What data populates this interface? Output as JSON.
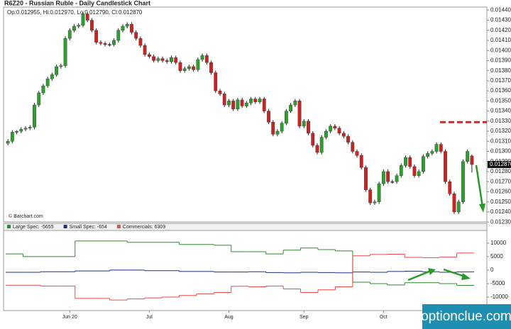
{
  "header": {
    "title": "R6Z20 - Russian Ruble - Daily Candlestick Chart",
    "credit": "© Barchart.com",
    "watermark": "optionclue.com"
  },
  "chart_data": [
    {
      "type": "candlestick",
      "info": "Op:0.012955, Hi:0.012970, Lo:0.012790, Cl:0.012870",
      "categories": [
        null,
        null,
        null,
        null,
        null,
        null,
        null,
        null,
        null,
        null,
        null,
        null,
        null,
        null,
        "Jun 20",
        null,
        null,
        null,
        null,
        null,
        null,
        null,
        null,
        null,
        null,
        null,
        null,
        null,
        null,
        null,
        null,
        null,
        "Jul",
        null,
        null,
        null,
        null,
        null,
        null,
        null,
        null,
        null,
        null,
        null,
        null,
        null,
        null,
        null,
        null,
        null,
        "Aug",
        null,
        null,
        null,
        null,
        null,
        null,
        null,
        null,
        null,
        null,
        null,
        null,
        null,
        null,
        null,
        null,
        "Sep",
        null,
        null,
        null,
        null,
        null,
        null,
        null,
        null,
        null,
        null,
        null,
        null,
        null,
        null,
        null,
        null,
        null,
        "Oct",
        null,
        null,
        null,
        null,
        null,
        null,
        null,
        null,
        null,
        null,
        null,
        null,
        null,
        null,
        null,
        null,
        null,
        null,
        null,
        null
      ],
      "open": [
        0.01308,
        0.0131,
        0.01319,
        0.0132,
        0.01322,
        0.01323,
        0.01324,
        0.01346,
        0.01358,
        0.01365,
        0.01372,
        0.01376,
        0.01384,
        0.01385,
        0.01412,
        0.0142,
        0.01424,
        0.01425,
        0.01436,
        0.0143,
        0.0142,
        0.01408,
        0.01407,
        0.01406,
        0.01406,
        0.0141,
        0.0142,
        0.01424,
        0.01426,
        0.01418,
        0.01412,
        0.01405,
        0.01396,
        0.01394,
        0.0139,
        0.01392,
        0.0139,
        0.01389,
        0.01393,
        0.01388,
        0.0138,
        0.01382,
        0.01384,
        0.01381,
        0.01391,
        0.01395,
        0.01388,
        0.01378,
        0.0136,
        0.01357,
        0.01346,
        0.0135,
        0.01342,
        0.01351,
        0.01345,
        0.01348,
        0.01352,
        0.01349,
        0.01352,
        0.0134,
        0.01329,
        0.01317,
        0.0132,
        0.01328,
        0.0134,
        0.01346,
        0.0135,
        0.01325,
        0.0133,
        0.01318,
        0.01306,
        0.01299,
        0.01314,
        0.0132,
        0.01325,
        0.01323,
        0.01318,
        0.01315,
        0.01309,
        0.013,
        0.01296,
        0.01284,
        0.01262,
        0.01249,
        0.0125,
        0.01268,
        0.0128,
        0.0127,
        0.0127,
        0.01276,
        0.01286,
        0.01294,
        0.01285,
        0.01276,
        0.0128,
        0.01295,
        0.01298,
        0.013,
        0.01307,
        0.013,
        0.0127,
        0.01258,
        0.0124,
        0.0125,
        0.0129,
        0.012955
      ],
      "high": [
        0.01312,
        0.01321,
        0.01321,
        0.01324,
        0.01325,
        0.01326,
        0.01348,
        0.0136,
        0.01367,
        0.01374,
        0.01378,
        0.01386,
        0.01387,
        0.01414,
        0.01422,
        0.01426,
        0.01427,
        0.01438,
        0.01438,
        0.01432,
        0.01422,
        0.0141,
        0.01409,
        0.01408,
        0.01412,
        0.01422,
        0.01426,
        0.01428,
        0.01428,
        0.0142,
        0.01414,
        0.01407,
        0.01398,
        0.01396,
        0.01394,
        0.01394,
        0.01392,
        0.01395,
        0.01395,
        0.0139,
        0.01384,
        0.01386,
        0.01386,
        0.01393,
        0.01397,
        0.01397,
        0.0139,
        0.0138,
        0.01362,
        0.01359,
        0.01352,
        0.01352,
        0.01353,
        0.01353,
        0.0135,
        0.01354,
        0.01354,
        0.01354,
        0.01354,
        0.01342,
        0.01331,
        0.01322,
        0.0133,
        0.01342,
        0.01348,
        0.01352,
        0.01352,
        0.01332,
        0.01332,
        0.0132,
        0.01308,
        0.01316,
        0.01322,
        0.01327,
        0.01327,
        0.01325,
        0.0132,
        0.01317,
        0.01311,
        0.01302,
        0.01298,
        0.01286,
        0.01264,
        0.01252,
        0.0127,
        0.01282,
        0.01282,
        0.01272,
        0.01278,
        0.01288,
        0.01296,
        0.01296,
        0.01287,
        0.01282,
        0.01297,
        0.013,
        0.01302,
        0.01309,
        0.01309,
        0.01302,
        0.01272,
        0.0126,
        0.01252,
        0.01292,
        0.01302,
        0.01297
      ],
      "low": [
        0.01306,
        0.01308,
        0.01317,
        0.01318,
        0.0132,
        0.01321,
        0.01322,
        0.01344,
        0.01356,
        0.01363,
        0.0137,
        0.01374,
        0.01382,
        0.01383,
        0.0141,
        0.01418,
        0.01422,
        0.01423,
        0.01428,
        0.01418,
        0.01406,
        0.01405,
        0.01404,
        0.01404,
        0.01404,
        0.01408,
        0.01418,
        0.01422,
        0.01416,
        0.0141,
        0.01403,
        0.01394,
        0.01392,
        0.01388,
        0.01388,
        0.01388,
        0.01387,
        0.01387,
        0.01386,
        0.01378,
        0.01378,
        0.0138,
        0.01379,
        0.01379,
        0.01389,
        0.01386,
        0.01376,
        0.01358,
        0.01355,
        0.01344,
        0.01344,
        0.0134,
        0.0134,
        0.01343,
        0.01343,
        0.01346,
        0.01347,
        0.01347,
        0.01338,
        0.01327,
        0.01315,
        0.01315,
        0.01318,
        0.01326,
        0.01338,
        0.01344,
        0.01323,
        0.01323,
        0.01316,
        0.01304,
        0.01297,
        0.01297,
        0.01312,
        0.01318,
        0.01321,
        0.01316,
        0.01313,
        0.01307,
        0.01298,
        0.01294,
        0.01282,
        0.0126,
        0.01247,
        0.01247,
        0.01248,
        0.01266,
        0.01268,
        0.01268,
        0.01268,
        0.01274,
        0.01284,
        0.01283,
        0.01274,
        0.01274,
        0.01278,
        0.01293,
        0.01296,
        0.01298,
        0.01298,
        0.01268,
        0.01256,
        0.01238,
        0.01238,
        0.01248,
        0.01288,
        0.01279
      ],
      "close": [
        0.0131,
        0.01319,
        0.0132,
        0.01322,
        0.01323,
        0.01324,
        0.01346,
        0.01358,
        0.01365,
        0.01372,
        0.01376,
        0.01384,
        0.01385,
        0.01412,
        0.0142,
        0.01424,
        0.01425,
        0.01436,
        0.0143,
        0.0142,
        0.01408,
        0.01407,
        0.01406,
        0.01406,
        0.0141,
        0.0142,
        0.01424,
        0.01426,
        0.01418,
        0.01412,
        0.01405,
        0.01396,
        0.01394,
        0.0139,
        0.01392,
        0.0139,
        0.01389,
        0.01393,
        0.01388,
        0.0138,
        0.01382,
        0.01384,
        0.01381,
        0.01391,
        0.01395,
        0.01388,
        0.01378,
        0.0136,
        0.01357,
        0.01346,
        0.0135,
        0.01342,
        0.01351,
        0.01345,
        0.01348,
        0.01352,
        0.01349,
        0.01352,
        0.0134,
        0.01329,
        0.01317,
        0.0132,
        0.01328,
        0.0134,
        0.01346,
        0.0135,
        0.01325,
        0.0133,
        0.01318,
        0.01306,
        0.01299,
        0.01314,
        0.0132,
        0.01325,
        0.01323,
        0.01318,
        0.01315,
        0.01309,
        0.013,
        0.01296,
        0.01284,
        0.01262,
        0.01249,
        0.0125,
        0.01268,
        0.0128,
        0.0127,
        0.0127,
        0.01276,
        0.01286,
        0.01294,
        0.01285,
        0.01276,
        0.0128,
        0.01295,
        0.01298,
        0.013,
        0.01307,
        0.013,
        0.0127,
        0.01258,
        0.0124,
        0.0125,
        0.0129,
        0.013,
        0.01287
      ],
      "up_color": "#2ca02c",
      "down_color": "#cc2222",
      "ylim": [
        0.01228,
        0.01443
      ],
      "yticks": [
        {
          "value": 0.0123,
          "label": "0.012300"
        },
        {
          "value": 0.0124,
          "label": "0.012400"
        },
        {
          "value": 0.0125,
          "label": "0.012500"
        },
        {
          "value": 0.0126,
          "label": "0.012600"
        },
        {
          "value": 0.0127,
          "label": "0.012700"
        },
        {
          "value": 0.0128,
          "label": "0.012800"
        },
        {
          "value": 0.0129,
          "label": "0.012900"
        },
        {
          "value": 0.013,
          "label": "0.013000"
        },
        {
          "value": 0.0131,
          "label": "0.013100"
        },
        {
          "value": 0.0132,
          "label": "0.013200"
        },
        {
          "value": 0.0133,
          "label": "0.013300"
        },
        {
          "value": 0.0134,
          "label": "0.013400"
        },
        {
          "value": 0.0135,
          "label": "0.013500"
        },
        {
          "value": 0.0136,
          "label": "0.013600"
        },
        {
          "value": 0.0137,
          "label": "0.013700"
        },
        {
          "value": 0.0138,
          "label": "0.013800"
        },
        {
          "value": 0.0139,
          "label": "0.013900"
        },
        {
          "value": 0.014,
          "label": "0.014000"
        },
        {
          "value": 0.0141,
          "label": "0.014100"
        },
        {
          "value": 0.0142,
          "label": "0.014200"
        },
        {
          "value": 0.0143,
          "label": "0.014300"
        },
        {
          "value": 0.0144,
          "label": "0.014400"
        }
      ],
      "last_price": {
        "value": 0.01287,
        "label": "0.012870"
      },
      "level_line": {
        "value": 0.01329,
        "color": "#e02020"
      }
    },
    {
      "type": "step",
      "ylim": [
        -15000,
        14700
      ],
      "yticks": [
        -10000,
        -5000,
        0,
        5000,
        10000
      ],
      "series": [
        {
          "name": "Large Spec: -5655",
          "color": "#2e8b2e",
          "values": [
            6000,
            5000,
            5000,
            5000,
            10800,
            10800,
            10800,
            10300,
            10300,
            10300,
            9500,
            9500,
            9200,
            6800,
            6800,
            6000,
            7400,
            8200,
            7600,
            7100,
            -4500,
            -5000,
            -5500,
            -4700,
            -4700,
            -5000,
            -5655
          ]
        },
        {
          "name": "Small Spec: -654",
          "color": "#1f2f8f",
          "values": [
            -800,
            -800,
            -600,
            -600,
            -300,
            -300,
            0,
            0,
            -200,
            -200,
            -500,
            -500,
            -700,
            -700,
            -600,
            -900,
            -1000,
            -800,
            -900,
            -1000,
            -700,
            -800,
            -500,
            -400,
            -600,
            -800,
            -654
          ]
        },
        {
          "name": "Commercials: 6309",
          "color": "#e84a4a",
          "values": [
            -5600,
            -5600,
            -5900,
            -5900,
            -10500,
            -10500,
            -11100,
            -10700,
            -10300,
            -10000,
            -9400,
            -8800,
            -8300,
            -6000,
            -6200,
            -5900,
            -7000,
            -8300,
            -7300,
            -6200,
            5300,
            5800,
            5900,
            4700,
            4600,
            4800,
            6309
          ]
        }
      ]
    }
  ]
}
